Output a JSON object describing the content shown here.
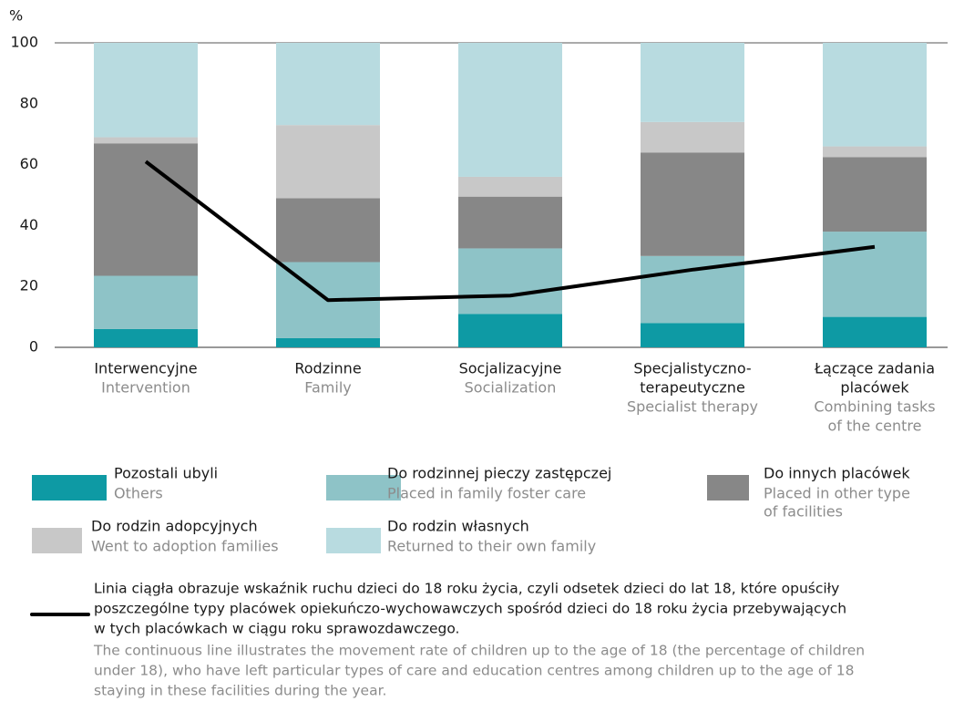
{
  "chart_data": {
    "type": "bar",
    "stacked": true,
    "ylabel": "%",
    "categories": [
      [
        "Interwencyjne"
      ],
      [
        "Rodzinne"
      ],
      [
        "Socjalizacyjne"
      ],
      [
        "Specjalistyczno-",
        "terapeutyczne"
      ],
      [
        "Łączące zadania",
        "placówek"
      ]
    ],
    "categories_en": [
      [
        "Intervention"
      ],
      [
        "Family"
      ],
      [
        "Socialization"
      ],
      [
        "Specialist therapy"
      ],
      [
        "Combining tasks",
        "of the centre"
      ]
    ],
    "ylim": [
      0,
      100
    ],
    "yticks": [
      0,
      20,
      40,
      60,
      80,
      100
    ],
    "grid": false,
    "series": [
      {
        "name": "Pozostali ubyli",
        "name_en": [
          "Others"
        ],
        "color": "#0e9aa4",
        "values": [
          6,
          3,
          11,
          8,
          10
        ]
      },
      {
        "name": "Do rodzinnej pieczy zastępczej",
        "name_en": [
          "Placed in family foster care"
        ],
        "color": "#8ec3c7",
        "values": [
          17.5,
          25,
          21.5,
          22,
          28
        ]
      },
      {
        "name": "Do innych placówek",
        "name_en": [
          "Placed in other type",
          "of facilities"
        ],
        "color": "#878787",
        "values": [
          43.5,
          21,
          17,
          34,
          24.5
        ]
      },
      {
        "name": "Do rodzin adopcyjnych",
        "name_en": [
          "Went to adoption families"
        ],
        "color": "#c8c8c8",
        "values": [
          2,
          24,
          6.5,
          10,
          3.5
        ]
      },
      {
        "name": "Do rodzin własnych",
        "name_en": [
          "Returned to their own family"
        ],
        "color": "#b8dbe0",
        "values": [
          31,
          27,
          44,
          26,
          34
        ]
      },
      {
        "type": "line",
        "color": "#000000",
        "values": [
          61,
          15.5,
          17,
          25.5,
          33
        ]
      }
    ],
    "note": {
      "pl": [
        "Linia ciągła obrazuje wskaźnik ruchu dzieci do 18 roku życia, czyli odsetek dzieci do lat 18, które opuściły",
        "poszczególne typy placówek opiekuńczo-wychowawczych spośród dzieci do 18 roku życia przebywających",
        "w tych placówkach w ciągu roku sprawozdawczego."
      ],
      "en": [
        "The continuous line illustrates the movement rate of children up to the age of 18 (the percentage of children",
        "under 18), who have left particular types of care and education centres among children up to the age of 18",
        "staying in these facilities during the year."
      ]
    }
  }
}
